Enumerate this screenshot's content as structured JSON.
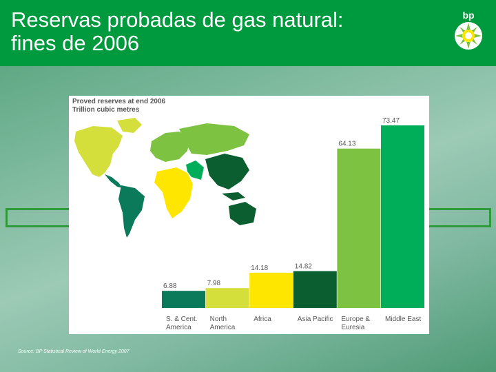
{
  "slide": {
    "title": "Reservas probadas de gas natural:\nfines de  2006",
    "logo_text": "bp",
    "source": "Source: BP Statistical Review of World Energy 2007"
  },
  "chart_data": {
    "type": "bar",
    "title": "Proved reserves at end 2006",
    "subtitle": "Trillion cubic metres",
    "categories": [
      "S. & Cent.\nAmerica",
      "North\nAmerica",
      "Africa",
      "Asia Pacific",
      "Europe &\nEuresia",
      "Middle East"
    ],
    "values": [
      6.88,
      7.98,
      14.18,
      14.82,
      64.13,
      73.47
    ],
    "value_labels": [
      "6.88",
      "7.98",
      "14.18",
      "14.82",
      "64.13",
      "73.47"
    ],
    "colors": [
      "#0a7a5a",
      "#d5df3c",
      "#ffe600",
      "#0b5e2f",
      "#7dc241",
      "#00ae5a"
    ],
    "ylim": [
      0,
      73.47
    ],
    "grid": false,
    "legend": "none"
  },
  "colors": {
    "header": "#009a3e",
    "frame": "#2f9a3a"
  }
}
